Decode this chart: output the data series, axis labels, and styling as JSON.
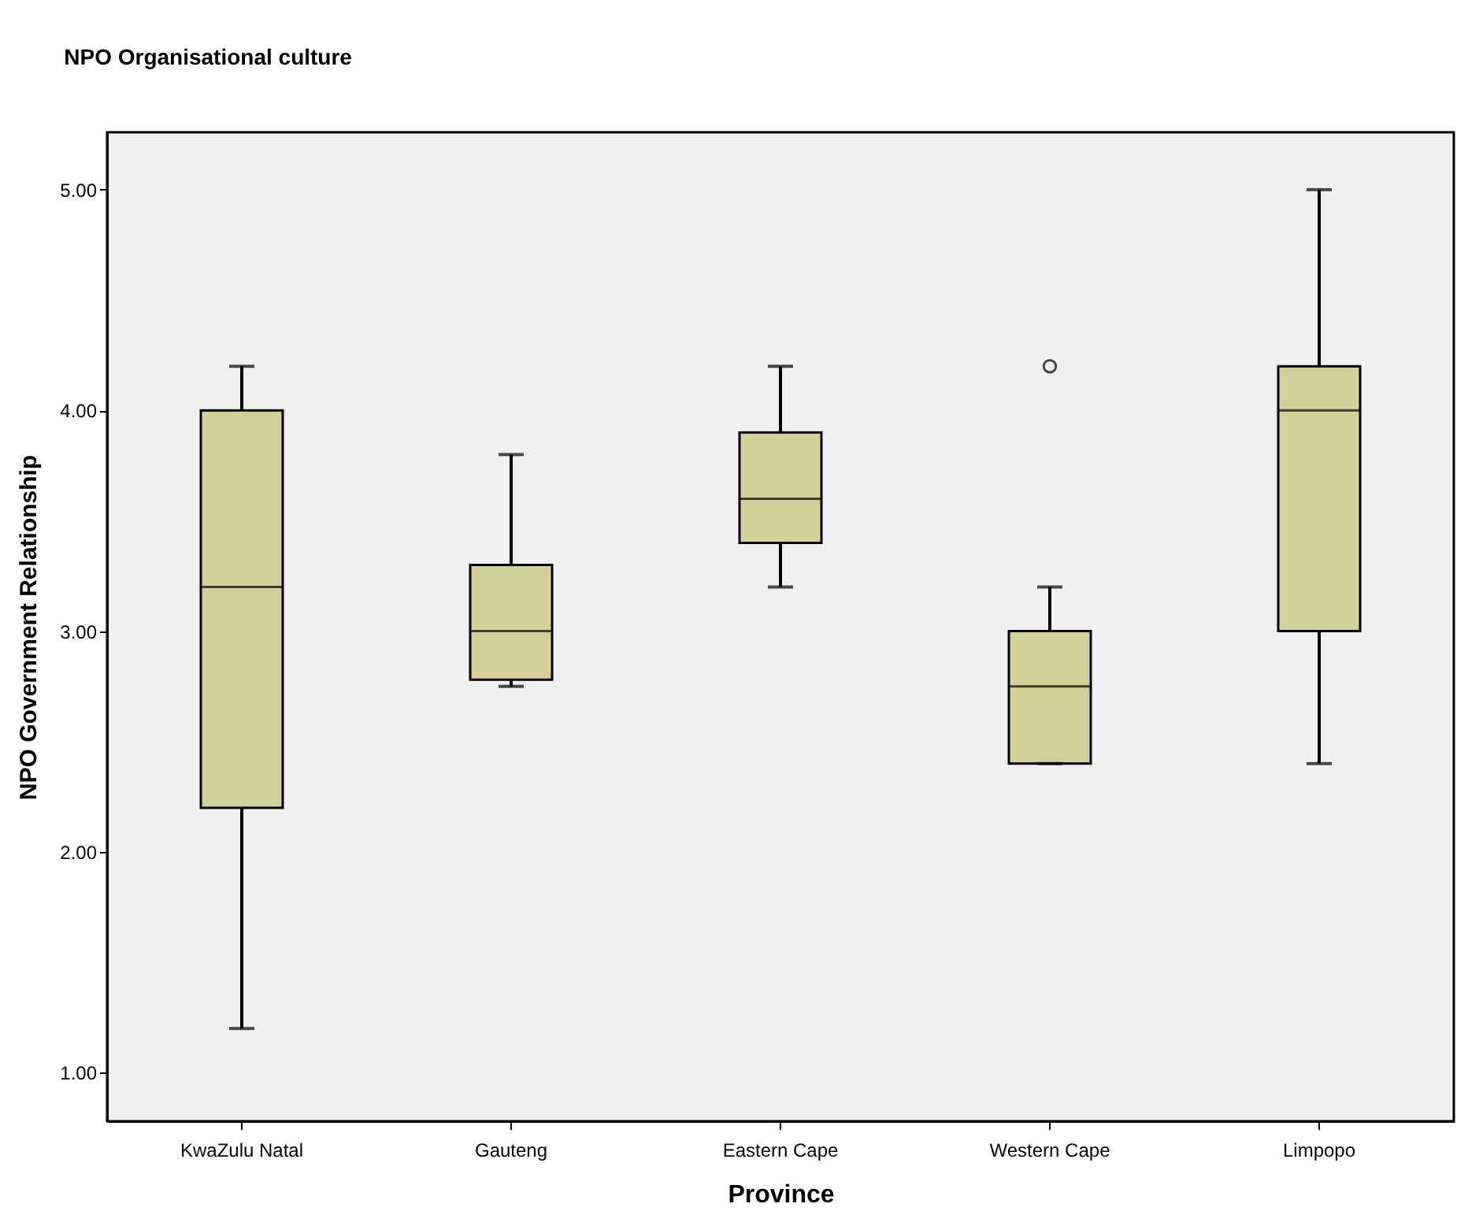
{
  "chart_data": {
    "type": "box",
    "title": "NPO Organisational culture",
    "xlabel": "Province",
    "ylabel": "NPO Government Relationship",
    "categories": [
      "KwaZulu Natal",
      "Gauteng",
      "Eastern Cape",
      "Western Cape",
      "Limpopo"
    ],
    "color": "#d4d09a",
    "boxes": [
      {
        "low": 1.2,
        "q1": 2.2,
        "median": 3.2,
        "q3": 4.0,
        "high": 4.2
      },
      {
        "low": 2.75,
        "q1": 2.78,
        "median": 3.0,
        "q3": 3.3,
        "high": 3.8
      },
      {
        "low": 3.2,
        "q1": 3.4,
        "median": 3.6,
        "q3": 3.9,
        "high": 4.2
      },
      {
        "low": 2.4,
        "q1": 2.4,
        "median": 2.75,
        "q3": 3.0,
        "high": 3.2,
        "outliers": [
          4.2
        ]
      },
      {
        "low": 2.4,
        "q1": 3.0,
        "median": 4.0,
        "q3": 4.2,
        "high": 5.0
      }
    ],
    "ylim": [
      0.78,
      5.26
    ],
    "yticks": [
      {
        "value": 1,
        "label": "1.00"
      },
      {
        "value": 2,
        "label": "2.00"
      },
      {
        "value": 3,
        "label": "3.00"
      },
      {
        "value": 4,
        "label": "4.00"
      },
      {
        "value": 5,
        "label": "5.00"
      }
    ],
    "grid": false
  }
}
